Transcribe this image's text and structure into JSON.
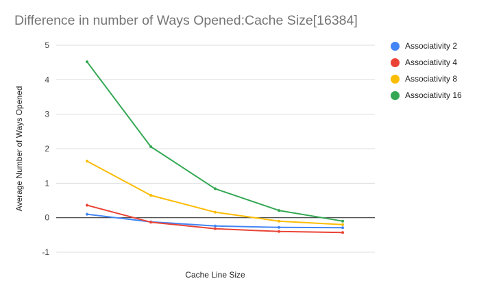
{
  "chart_data": {
    "type": "line",
    "title": "Difference in number of Ways Opened:Cache Size[16384]",
    "xlabel": "Cache Line Size",
    "ylabel": "Average Number of Ways Opened",
    "ylim": [
      -1,
      5
    ],
    "yticks": [
      "5",
      "4",
      "3",
      "2",
      "1",
      "0",
      "-1"
    ],
    "categories": [
      "",
      "",
      "",
      "",
      ""
    ],
    "grid": true,
    "legend_position": "right",
    "series": [
      {
        "name": "Associativity 2",
        "color": "#4285f4",
        "values": [
          0.1,
          -0.12,
          -0.24,
          -0.28,
          -0.29
        ]
      },
      {
        "name": "Associativity 4",
        "color": "#ea4335",
        "values": [
          0.36,
          -0.13,
          -0.32,
          -0.4,
          -0.43
        ]
      },
      {
        "name": "Associativity 8",
        "color": "#fbbc04",
        "values": [
          1.64,
          0.65,
          0.16,
          -0.1,
          -0.2
        ]
      },
      {
        "name": "Associativity 16",
        "color": "#34a853",
        "values": [
          4.52,
          2.06,
          0.84,
          0.21,
          -0.1
        ]
      }
    ]
  }
}
